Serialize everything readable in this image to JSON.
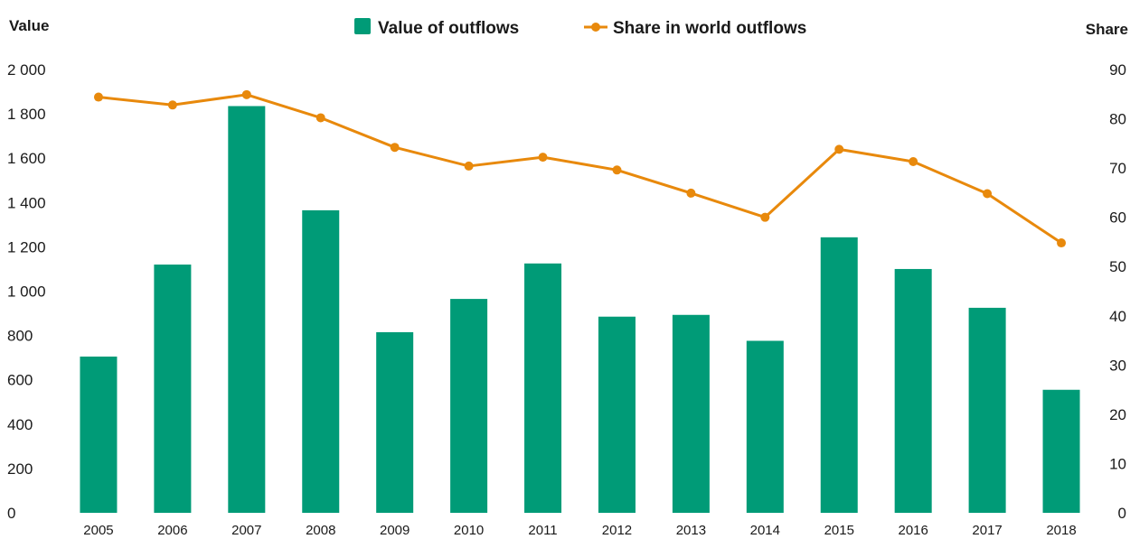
{
  "chart_data": {
    "type": "bar",
    "title": "",
    "categories": [
      "2005",
      "2006",
      "2007",
      "2008",
      "2009",
      "2010",
      "2011",
      "2012",
      "2013",
      "2014",
      "2015",
      "2016",
      "2017",
      "2018"
    ],
    "series": [
      {
        "name": "Value of outflows",
        "kind": "bar",
        "axis": "left",
        "color": "#009B77",
        "values": [
          705,
          1120,
          1835,
          1365,
          815,
          965,
          1125,
          885,
          893,
          776,
          1243,
          1100,
          925,
          555
        ]
      },
      {
        "name": "Share in world outflows",
        "kind": "line",
        "axis": "right",
        "color": "#E8890C",
        "values": [
          84.4,
          82.8,
          84.9,
          80.2,
          74.2,
          70.4,
          72.2,
          69.6,
          64.9,
          60.0,
          73.8,
          71.3,
          64.8,
          54.8
        ]
      }
    ],
    "ylabel": "Value",
    "y2label": "Share",
    "ylim": [
      0,
      2000
    ],
    "y2lim": [
      0,
      90
    ],
    "yticks": [
      "0",
      "200",
      "400",
      "600",
      "800",
      "1 000",
      "1 200",
      "1 400",
      "1 600",
      "1 800",
      "2 000"
    ],
    "y2ticks": [
      "0",
      "10",
      "20",
      "30",
      "40",
      "50",
      "60",
      "70",
      "80",
      "90"
    ],
    "legend_position": "top-center",
    "grid": false
  }
}
